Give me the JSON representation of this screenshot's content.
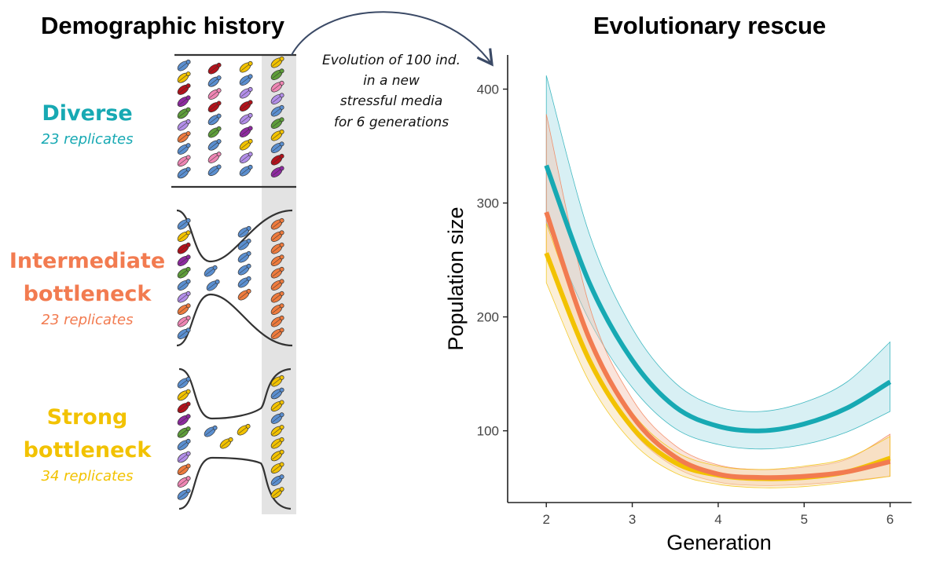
{
  "left_panel": {
    "title": "Demographic history",
    "groups": [
      {
        "name_lines": [
          "Diverse"
        ],
        "replicates": "23 replicates",
        "color": "#17a9b3"
      },
      {
        "name_lines": [
          "Intermediate",
          "bottleneck"
        ],
        "replicates": "23 replicates",
        "color": "#f27b50"
      },
      {
        "name_lines": [
          "Strong",
          "bottleneck"
        ],
        "replicates": "34 replicates",
        "color": "#f2c200"
      }
    ],
    "beetle_colors": {
      "blue": "#5b8fd0",
      "yellow": "#f2c200",
      "red": "#b3121b",
      "purple": "#8e2aa0",
      "green": "#5e9d3a",
      "orange": "#ee7b3e",
      "pink": "#ef86b4",
      "lavender": "#b28ee8"
    }
  },
  "annotation": {
    "lines": [
      "Evolution of 100 ind.",
      "in a new",
      "stressful media",
      "for 6 generations"
    ]
  },
  "chart_data": {
    "type": "line",
    "title": "Evolutionary rescue",
    "xlabel": "Generation",
    "ylabel": "Population size",
    "xlim": [
      1.55,
      6.25
    ],
    "ylim": [
      37,
      430
    ],
    "x_ticks": [
      2,
      3,
      4,
      5,
      6
    ],
    "y_ticks": [
      100,
      200,
      300,
      400
    ],
    "grid": false,
    "legend": "none",
    "x": [
      2,
      2.5,
      3,
      3.5,
      4,
      4.5,
      5,
      5.5,
      6
    ],
    "series": [
      {
        "color": "#17a9b3",
        "fill": "#a9dde6",
        "values": [
          333,
          230,
          162,
          121,
          104,
          100,
          106,
          120,
          143
        ],
        "lower": [
          283,
          197,
          138,
          102,
          88,
          84,
          88,
          99,
          117
        ],
        "upper": [
          412,
          273,
          190,
          142,
          121,
          117,
          125,
          143,
          178
        ]
      },
      {
        "color": "#f27b50",
        "fill": "#f4c3b0",
        "values": [
          292,
          181,
          113,
          77,
          62,
          59,
          60,
          64,
          73
        ],
        "lower": [
          254,
          161,
          100,
          68,
          55,
          52,
          53,
          56,
          60
        ],
        "upper": [
          378,
          210,
          128,
          87,
          70,
          66,
          68,
          75,
          97
        ]
      },
      {
        "color": "#f2c200",
        "fill": "#f7dca8",
        "values": [
          256,
          162,
          103,
          72,
          61,
          58,
          59,
          64,
          76
        ],
        "lower": [
          230,
          143,
          90,
          63,
          53,
          50,
          51,
          55,
          60
        ],
        "upper": [
          282,
          181,
          116,
          82,
          69,
          66,
          69,
          76,
          95
        ]
      }
    ]
  }
}
